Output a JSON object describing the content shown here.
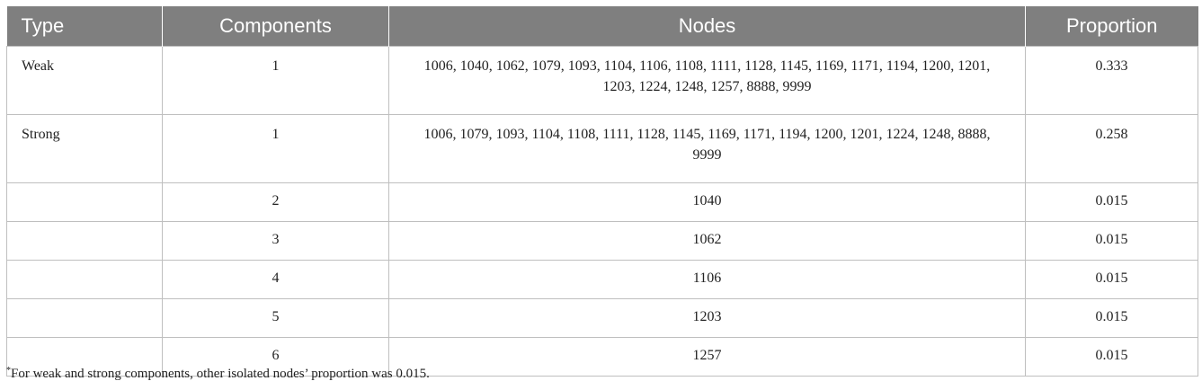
{
  "table": {
    "headers": [
      "Type",
      "Components",
      "Nodes",
      "Proportion"
    ],
    "rows": [
      {
        "type": "Weak",
        "components": "1",
        "nodes": "1006, 1040, 1062, 1079, 1093, 1104, 1106, 1108, 1111, 1128, 1145, 1169, 1171, 1194, 1200, 1201, 1203, 1224, 1248, 1257, 8888, 9999",
        "proportion": "0.333"
      },
      {
        "type": "Strong",
        "components": "1",
        "nodes": "1006, 1079, 1093, 1104, 1108, 1111, 1128, 1145, 1169, 1171, 1194, 1200, 1201, 1224, 1248, 8888, 9999",
        "proportion": "0.258"
      },
      {
        "type": "",
        "components": "2",
        "nodes": "1040",
        "proportion": "0.015"
      },
      {
        "type": "",
        "components": "3",
        "nodes": "1062",
        "proportion": "0.015"
      },
      {
        "type": "",
        "components": "4",
        "nodes": "1106",
        "proportion": "0.015"
      },
      {
        "type": "",
        "components": "5",
        "nodes": "1203",
        "proportion": "0.015"
      },
      {
        "type": "",
        "components": "6",
        "nodes": "1257",
        "proportion": "0.015"
      }
    ]
  },
  "footnote": {
    "marker": "*",
    "text": "For weak and strong components, other isolated nodes’ proportion was 0.015."
  },
  "colors": {
    "header_bg": "#7f7f7f",
    "header_text": "#ffffff",
    "grid": "#bfbfbf"
  }
}
